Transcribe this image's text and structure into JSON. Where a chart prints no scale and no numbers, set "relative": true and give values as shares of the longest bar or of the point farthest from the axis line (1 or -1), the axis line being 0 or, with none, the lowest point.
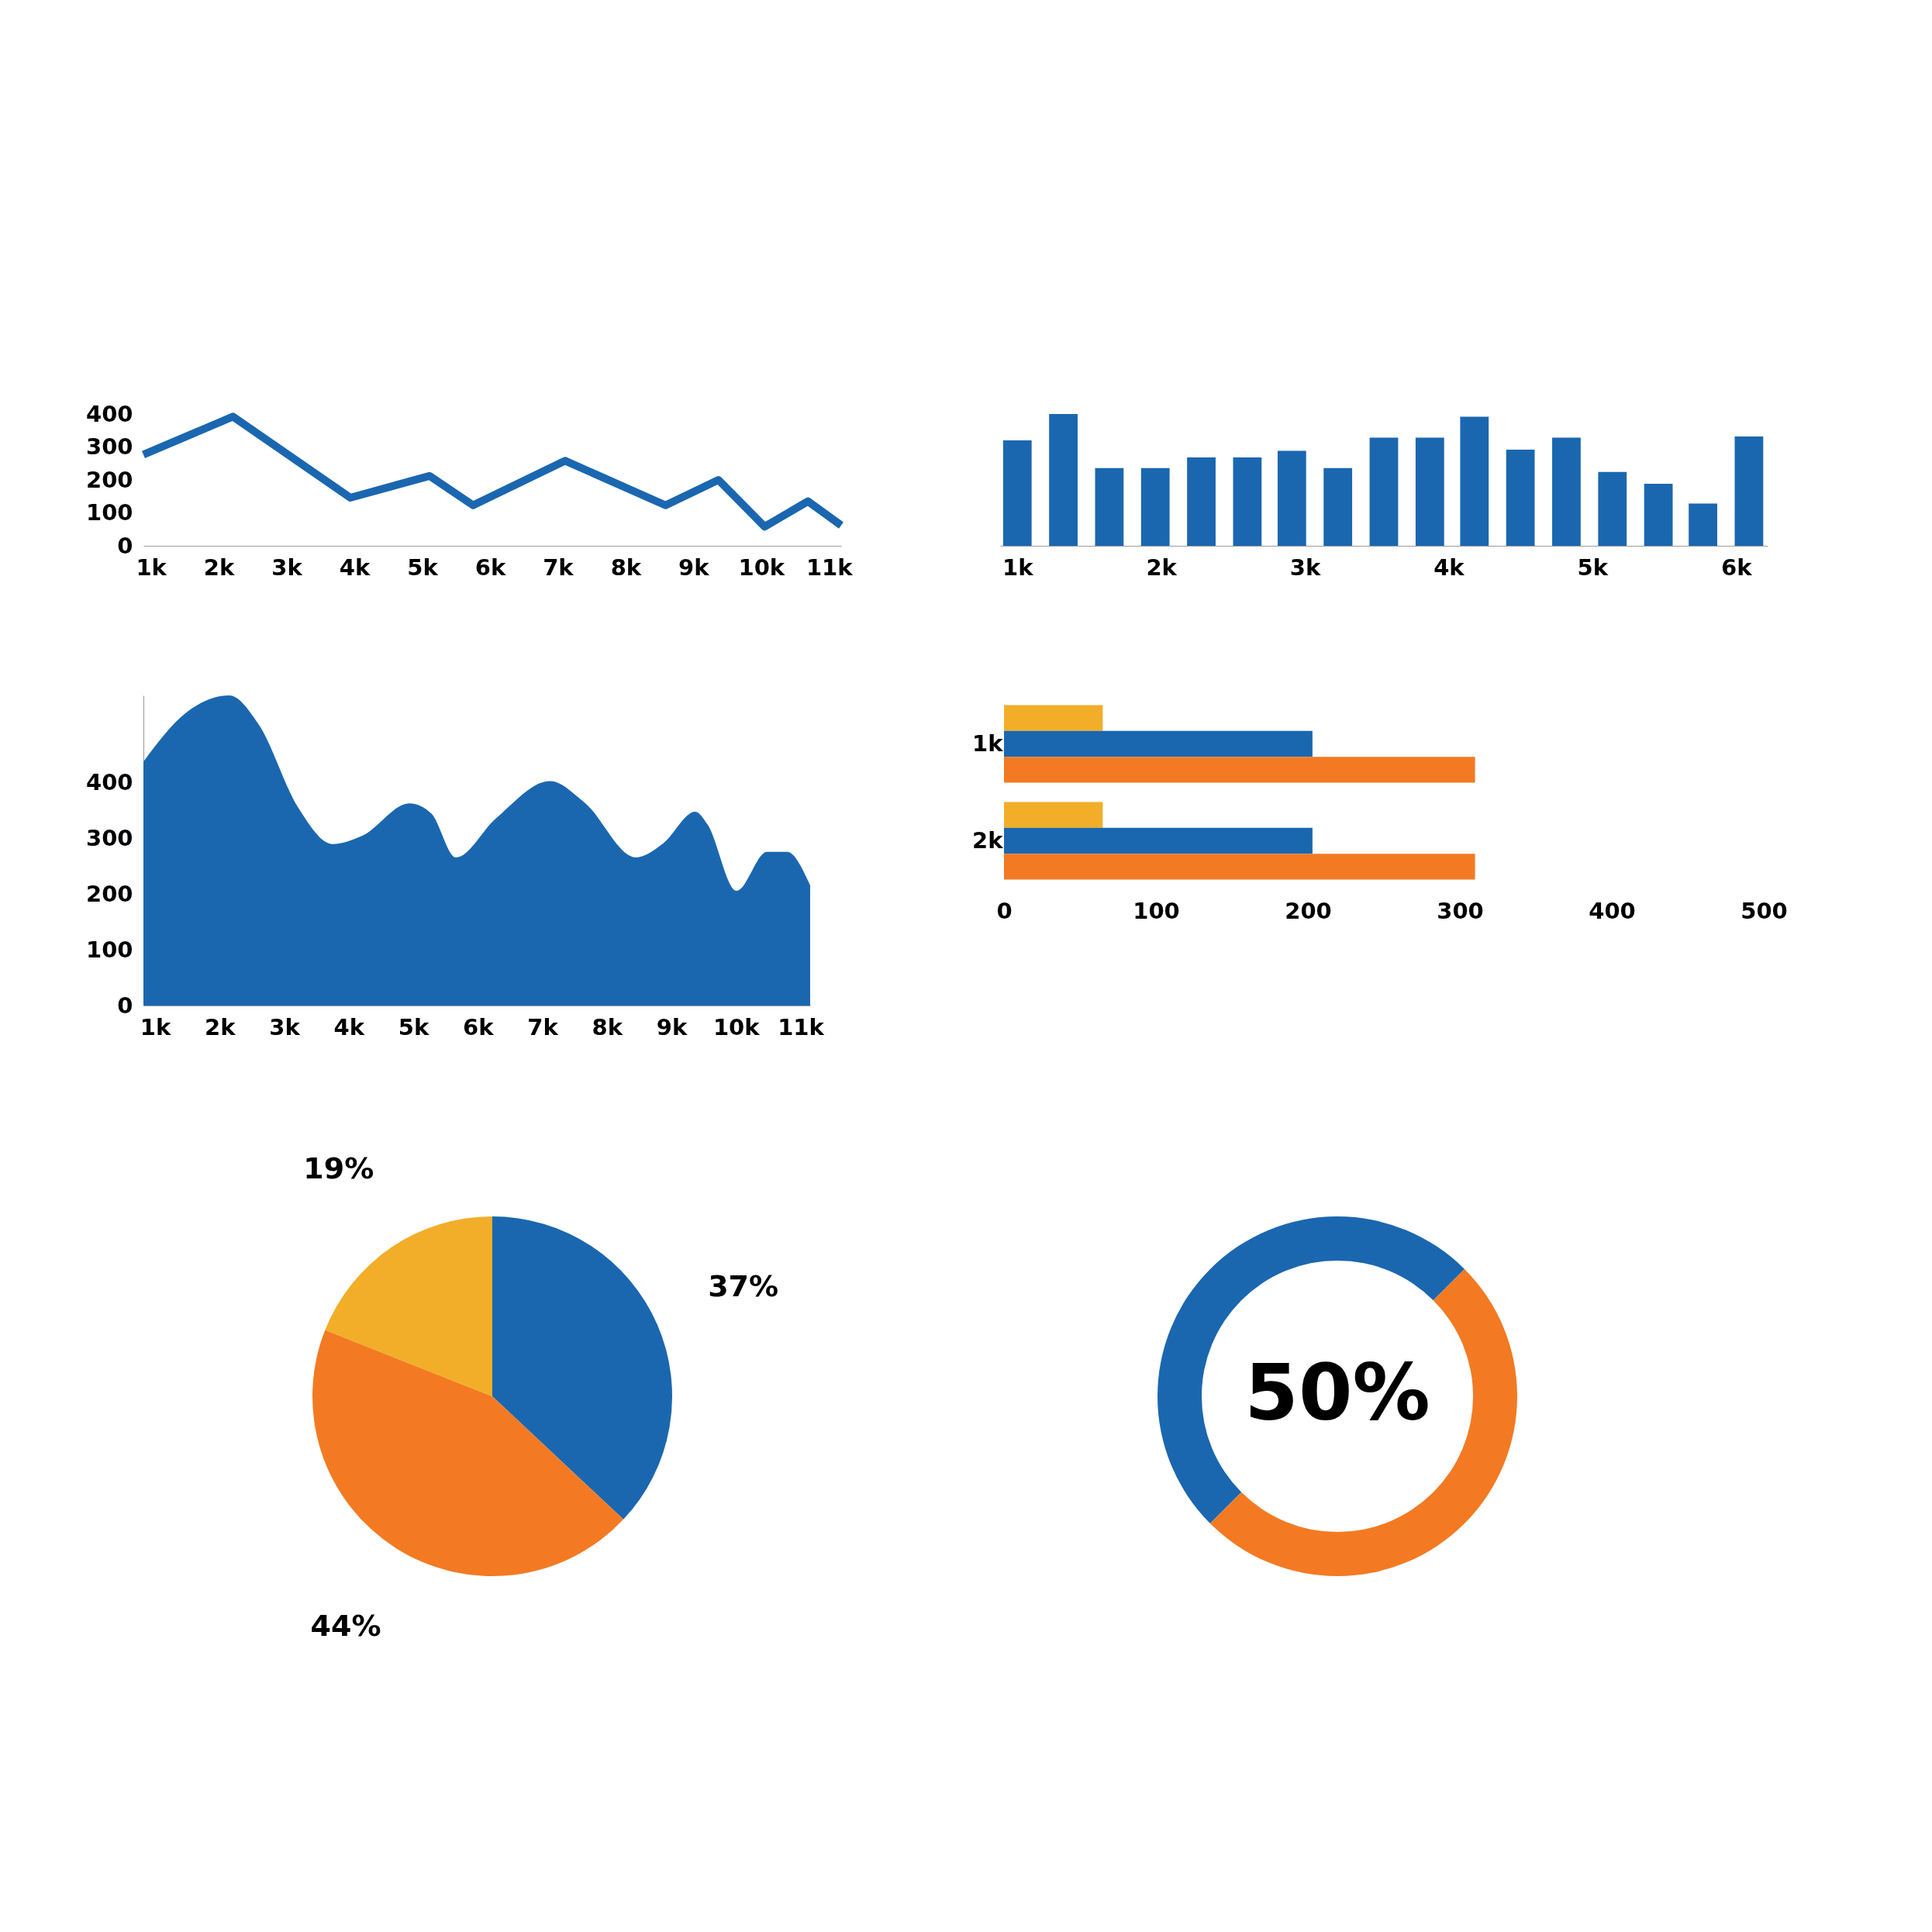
{
  "chart_data": [
    {
      "type": "line",
      "x": [
        890,
        2210,
        3940,
        5110,
        5750,
        7110,
        8590,
        9370,
        10050,
        10690,
        11180
      ],
      "xlim": [
        890,
        11180
      ],
      "xticks": [
        {
          "value": 1000,
          "label": "1k"
        },
        {
          "value": 2000,
          "label": "2k"
        },
        {
          "value": 3000,
          "label": "3k"
        },
        {
          "value": 4000,
          "label": "4k"
        },
        {
          "value": 5000,
          "label": "5k"
        },
        {
          "value": 6000,
          "label": "6k"
        },
        {
          "value": 7000,
          "label": "7k"
        },
        {
          "value": 8000,
          "label": "8k"
        },
        {
          "value": 9000,
          "label": "9k"
        },
        {
          "value": 10000,
          "label": "10k"
        },
        {
          "value": 11000,
          "label": "11k"
        }
      ],
      "ylim": [
        0,
        400
      ],
      "yticks": [
        0,
        100,
        200,
        300,
        400
      ],
      "series": [
        {
          "color": "#1a67b0",
          "values": [
            277,
            392,
            146,
            212,
            123,
            258,
            123,
            200,
            58,
            135,
            62
          ]
        }
      ]
    },
    {
      "type": "bar",
      "relative": true,
      "x": [
        1000,
        1320,
        1640,
        1960,
        2280,
        2600,
        2910,
        3230,
        3550,
        3870,
        4180,
        4500,
        4820,
        5140,
        5460,
        5770,
        6090
      ],
      "xlim": [
        880,
        6220
      ],
      "xticks": [
        {
          "value": 1000,
          "label": "1k"
        },
        {
          "value": 2000,
          "label": "2k"
        },
        {
          "value": 3000,
          "label": "3k"
        },
        {
          "value": 4000,
          "label": "4k"
        },
        {
          "value": 5000,
          "label": "5k"
        },
        {
          "value": 6000,
          "label": "6k"
        }
      ],
      "series": [
        {
          "color": "#1a67b0",
          "values": [
            0.8,
            1,
            0.59,
            0.59,
            0.67,
            0.67,
            0.72,
            0.59,
            0.82,
            0.82,
            0.98,
            0.73,
            0.82,
            0.56,
            0.47,
            0.32,
            0.83
          ]
        }
      ]
    },
    {
      "type": "area",
      "x": [
        820,
        1460,
        2150,
        2610,
        3220,
        3750,
        4210,
        4940,
        5280,
        5660,
        6280,
        7120,
        7650,
        8450,
        8870,
        9370,
        9560,
        10010,
        10480,
        10790,
        11150
      ],
      "xlim": [
        820,
        11150
      ],
      "ylim": [
        0,
        557
      ],
      "xticks": [
        {
          "value": 1000,
          "label": "1k"
        },
        {
          "value": 2000,
          "label": "2k"
        },
        {
          "value": 3000,
          "label": "3k"
        },
        {
          "value": 4000,
          "label": "4k"
        },
        {
          "value": 5000,
          "label": "5k"
        },
        {
          "value": 6000,
          "label": "6k"
        },
        {
          "value": 7000,
          "label": "7k"
        },
        {
          "value": 8000,
          "label": "8k"
        },
        {
          "value": 9000,
          "label": "9k"
        },
        {
          "value": 10000,
          "label": "10k"
        },
        {
          "value": 11000,
          "label": "11k"
        }
      ],
      "yticks": [
        0,
        100,
        200,
        300,
        400
      ],
      "series": [
        {
          "color": "#1a67b0",
          "values": [
            438,
            524,
            557,
            504,
            355,
            290,
            305,
            363,
            345,
            266,
            336,
            403,
            365,
            266,
            291,
            348,
            325,
            206,
            276,
            276,
            216
          ]
        }
      ]
    },
    {
      "type": "bar",
      "orientation": "horizontal",
      "categories": [
        "1k",
        "2k"
      ],
      "xlim": [
        0,
        500
      ],
      "xticks": [
        0,
        100,
        200,
        300,
        400,
        500
      ],
      "series": [
        {
          "color": "#f2ae28",
          "values": [
            65,
            65
          ]
        },
        {
          "color": "#1a67b0",
          "values": [
            203,
            203
          ]
        },
        {
          "color": "#f37a22",
          "values": [
            310,
            310
          ]
        }
      ]
    },
    {
      "type": "pie",
      "categories": [
        null,
        null,
        null
      ],
      "values": [
        37,
        44,
        19
      ],
      "colors": [
        "#1a67b0",
        "#f37a22",
        "#f2ae28"
      ],
      "value_labels": [
        "37%",
        "44%",
        "19%"
      ]
    },
    {
      "type": "donut",
      "categories": [
        null,
        null
      ],
      "values": [
        50,
        50
      ],
      "colors": [
        "#1a67b0",
        "#f37a22"
      ],
      "annotations": [
        "50%"
      ]
    }
  ]
}
